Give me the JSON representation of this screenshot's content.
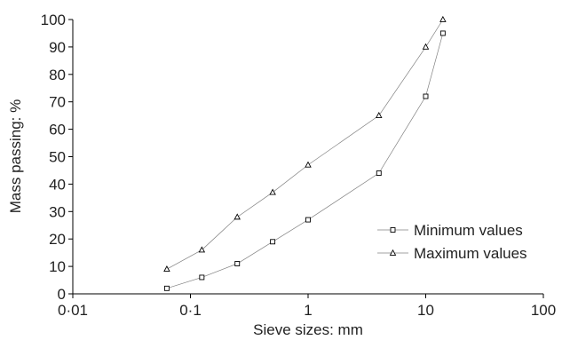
{
  "chart_data": {
    "type": "line",
    "xlabel": "Sieve sizes: mm",
    "ylabel": "Mass passing: %",
    "x_scale": "log",
    "xlim": [
      0.01,
      100
    ],
    "ylim": [
      0,
      100
    ],
    "grid": false,
    "legend_position": "bottom-right",
    "x_ticks": [
      {
        "value": 0.01,
        "label": "0·01"
      },
      {
        "value": 0.1,
        "label": "0·1"
      },
      {
        "value": 1,
        "label": "1"
      },
      {
        "value": 10,
        "label": "10"
      },
      {
        "value": 100,
        "label": "100"
      }
    ],
    "y_ticks": [
      {
        "value": 0,
        "label": "0"
      },
      {
        "value": 10,
        "label": "10"
      },
      {
        "value": 20,
        "label": "20"
      },
      {
        "value": 30,
        "label": "30"
      },
      {
        "value": 40,
        "label": "40"
      },
      {
        "value": 50,
        "label": "50"
      },
      {
        "value": 60,
        "label": "60"
      },
      {
        "value": 70,
        "label": "70"
      },
      {
        "value": 80,
        "label": "80"
      },
      {
        "value": 90,
        "label": "90"
      },
      {
        "value": 100,
        "label": "100"
      }
    ],
    "series": [
      {
        "name": "Minimum values",
        "marker": "square",
        "color": "#808080",
        "x": [
          0.063,
          0.125,
          0.25,
          0.5,
          1,
          4,
          10,
          14
        ],
        "values": [
          2,
          6,
          11,
          19,
          27,
          44,
          72,
          95
        ]
      },
      {
        "name": "Maximum values",
        "marker": "triangle",
        "color": "#808080",
        "x": [
          0.063,
          0.125,
          0.25,
          0.5,
          1,
          4,
          10,
          14
        ],
        "values": [
          9,
          16,
          28,
          37,
          47,
          65,
          90,
          100
        ]
      }
    ]
  }
}
